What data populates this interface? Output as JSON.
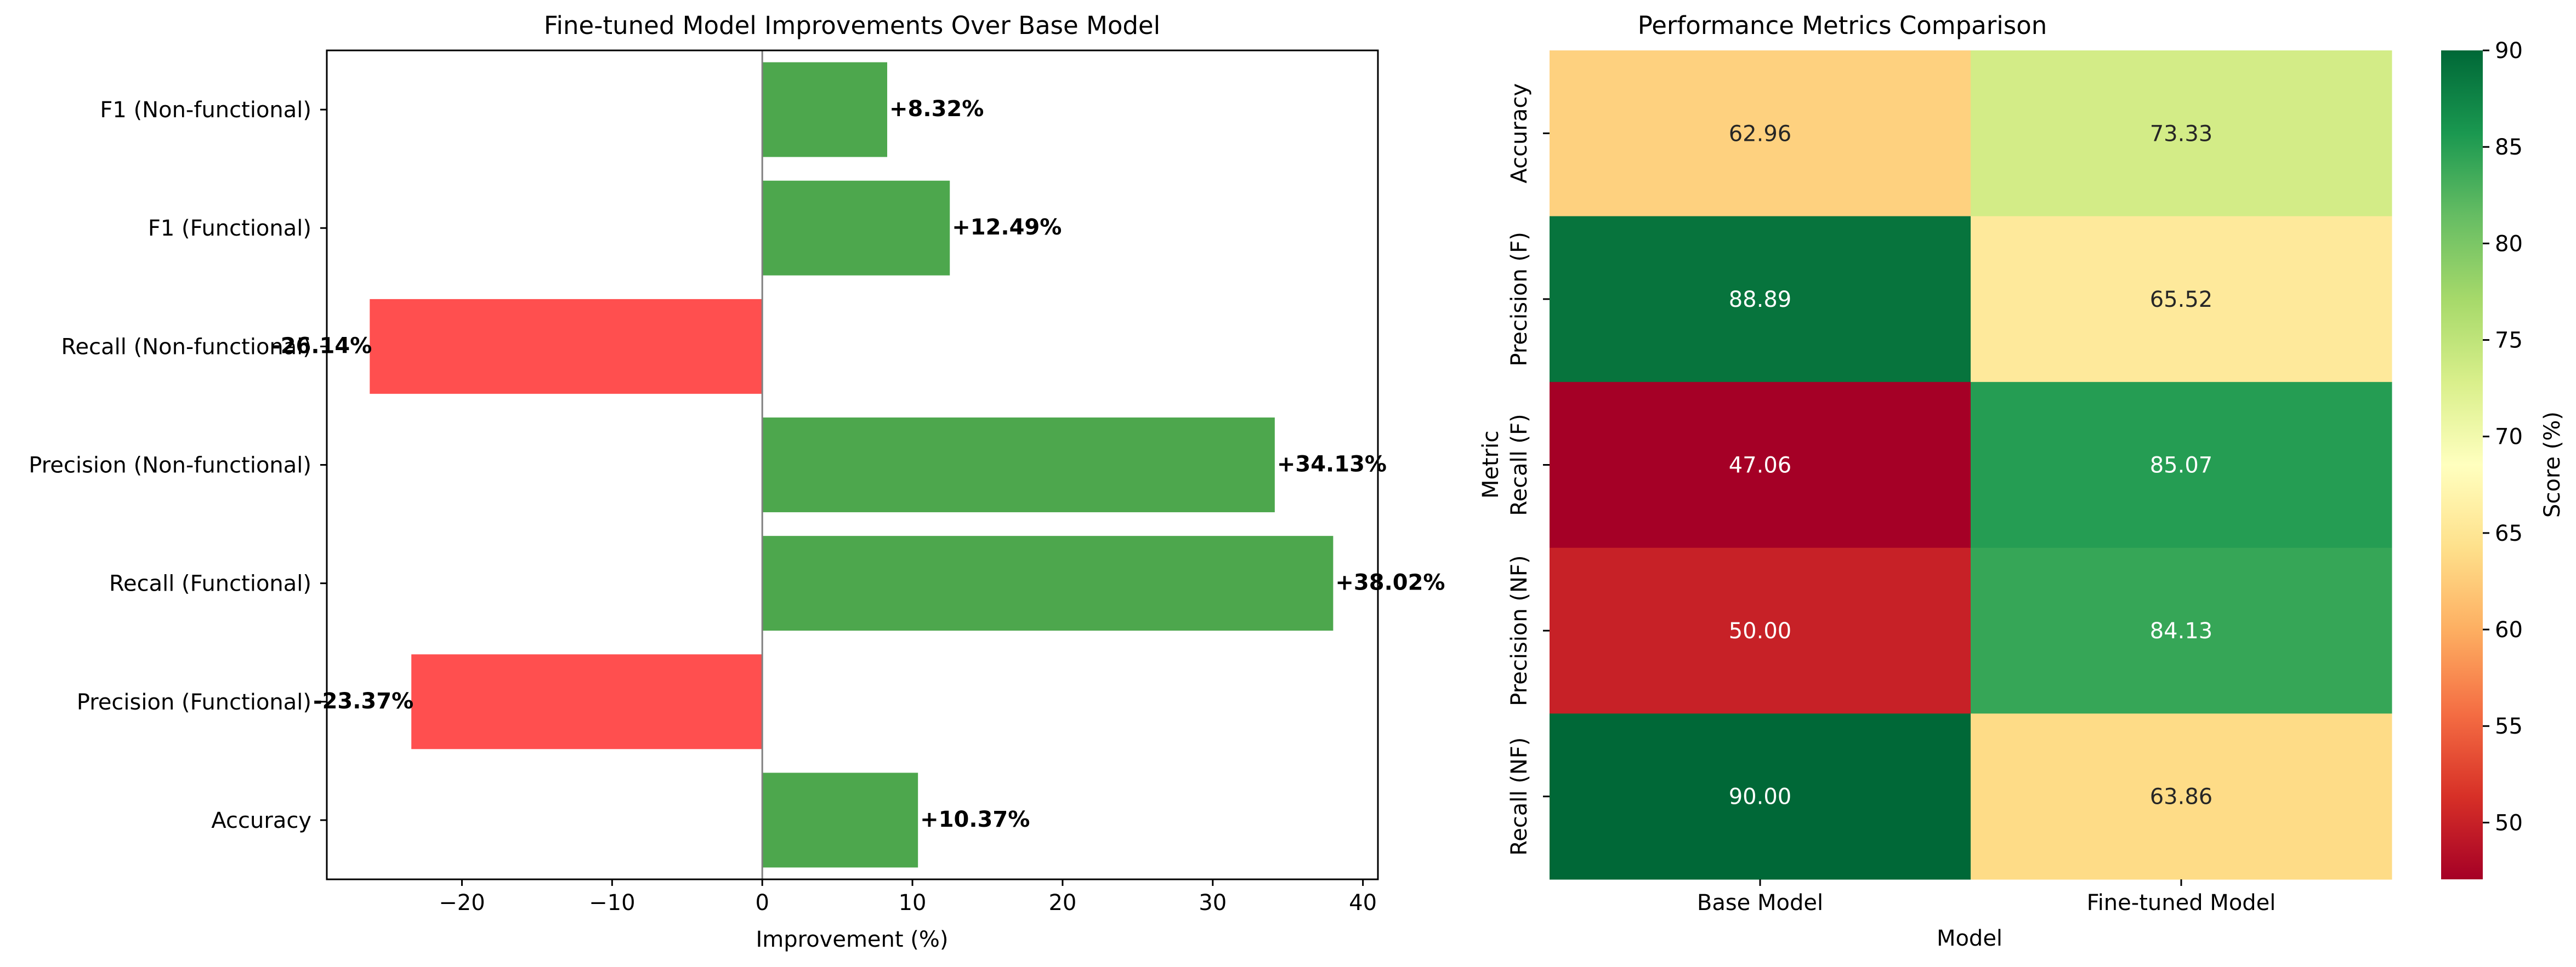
{
  "chart_data": [
    {
      "type": "bar",
      "orientation": "horizontal",
      "title": "Fine-tuned Model Improvements Over Base Model",
      "xlabel": "Improvement (%)",
      "ylabel": "",
      "xlim": [
        -29,
        41
      ],
      "xticks": [
        -20,
        -10,
        0,
        10,
        20,
        30,
        40
      ],
      "xtick_labels": [
        "−20",
        "−10",
        "0",
        "10",
        "20",
        "30",
        "40"
      ],
      "categories": [
        "Accuracy",
        "Precision (Functional)",
        "Recall (Functional)",
        "Precision (Non-functional)",
        "Recall (Non-functional)",
        "F1 (Functional)",
        "F1 (Non-functional)"
      ],
      "values": [
        10.37,
        -23.37,
        38.02,
        34.13,
        -26.14,
        12.49,
        8.32
      ],
      "value_labels": [
        "+10.37%",
        "-23.37%",
        "+38.02%",
        "+34.13%",
        "-26.14%",
        "+12.49%",
        "+8.32%"
      ],
      "colors": {
        "positive": "#4da74d",
        "negative": "#ff4f4f",
        "zero_line": "#808080"
      },
      "grid": false,
      "legend": "none"
    },
    {
      "type": "heatmap",
      "title": "Performance Metrics Comparison",
      "xlabel": "Model",
      "ylabel": "Metric",
      "columns": [
        "Base Model",
        "Fine-tuned Model"
      ],
      "rows": [
        "Accuracy",
        "Precision (F)",
        "Recall (F)",
        "Precision (NF)",
        "Recall (NF)"
      ],
      "values": [
        [
          62.96,
          73.33
        ],
        [
          88.89,
          65.52
        ],
        [
          47.06,
          85.07
        ],
        [
          50.0,
          84.13
        ],
        [
          90.0,
          63.86
        ]
      ],
      "value_labels": [
        [
          "62.96",
          "73.33"
        ],
        [
          "88.89",
          "65.52"
        ],
        [
          "47.06",
          "85.07"
        ],
        [
          "50.00",
          "84.13"
        ],
        [
          "90.00",
          "63.86"
        ]
      ],
      "colormap": "RdYlGn",
      "vmin": 47.06,
      "vmax": 90.0,
      "colorbar": {
        "label": "Score (%)",
        "ticks": [
          50,
          55,
          60,
          65,
          70,
          75,
          80,
          85,
          90
        ],
        "tick_labels": [
          "50",
          "55",
          "60",
          "65",
          "70",
          "75",
          "80",
          "85",
          "90"
        ]
      }
    }
  ]
}
